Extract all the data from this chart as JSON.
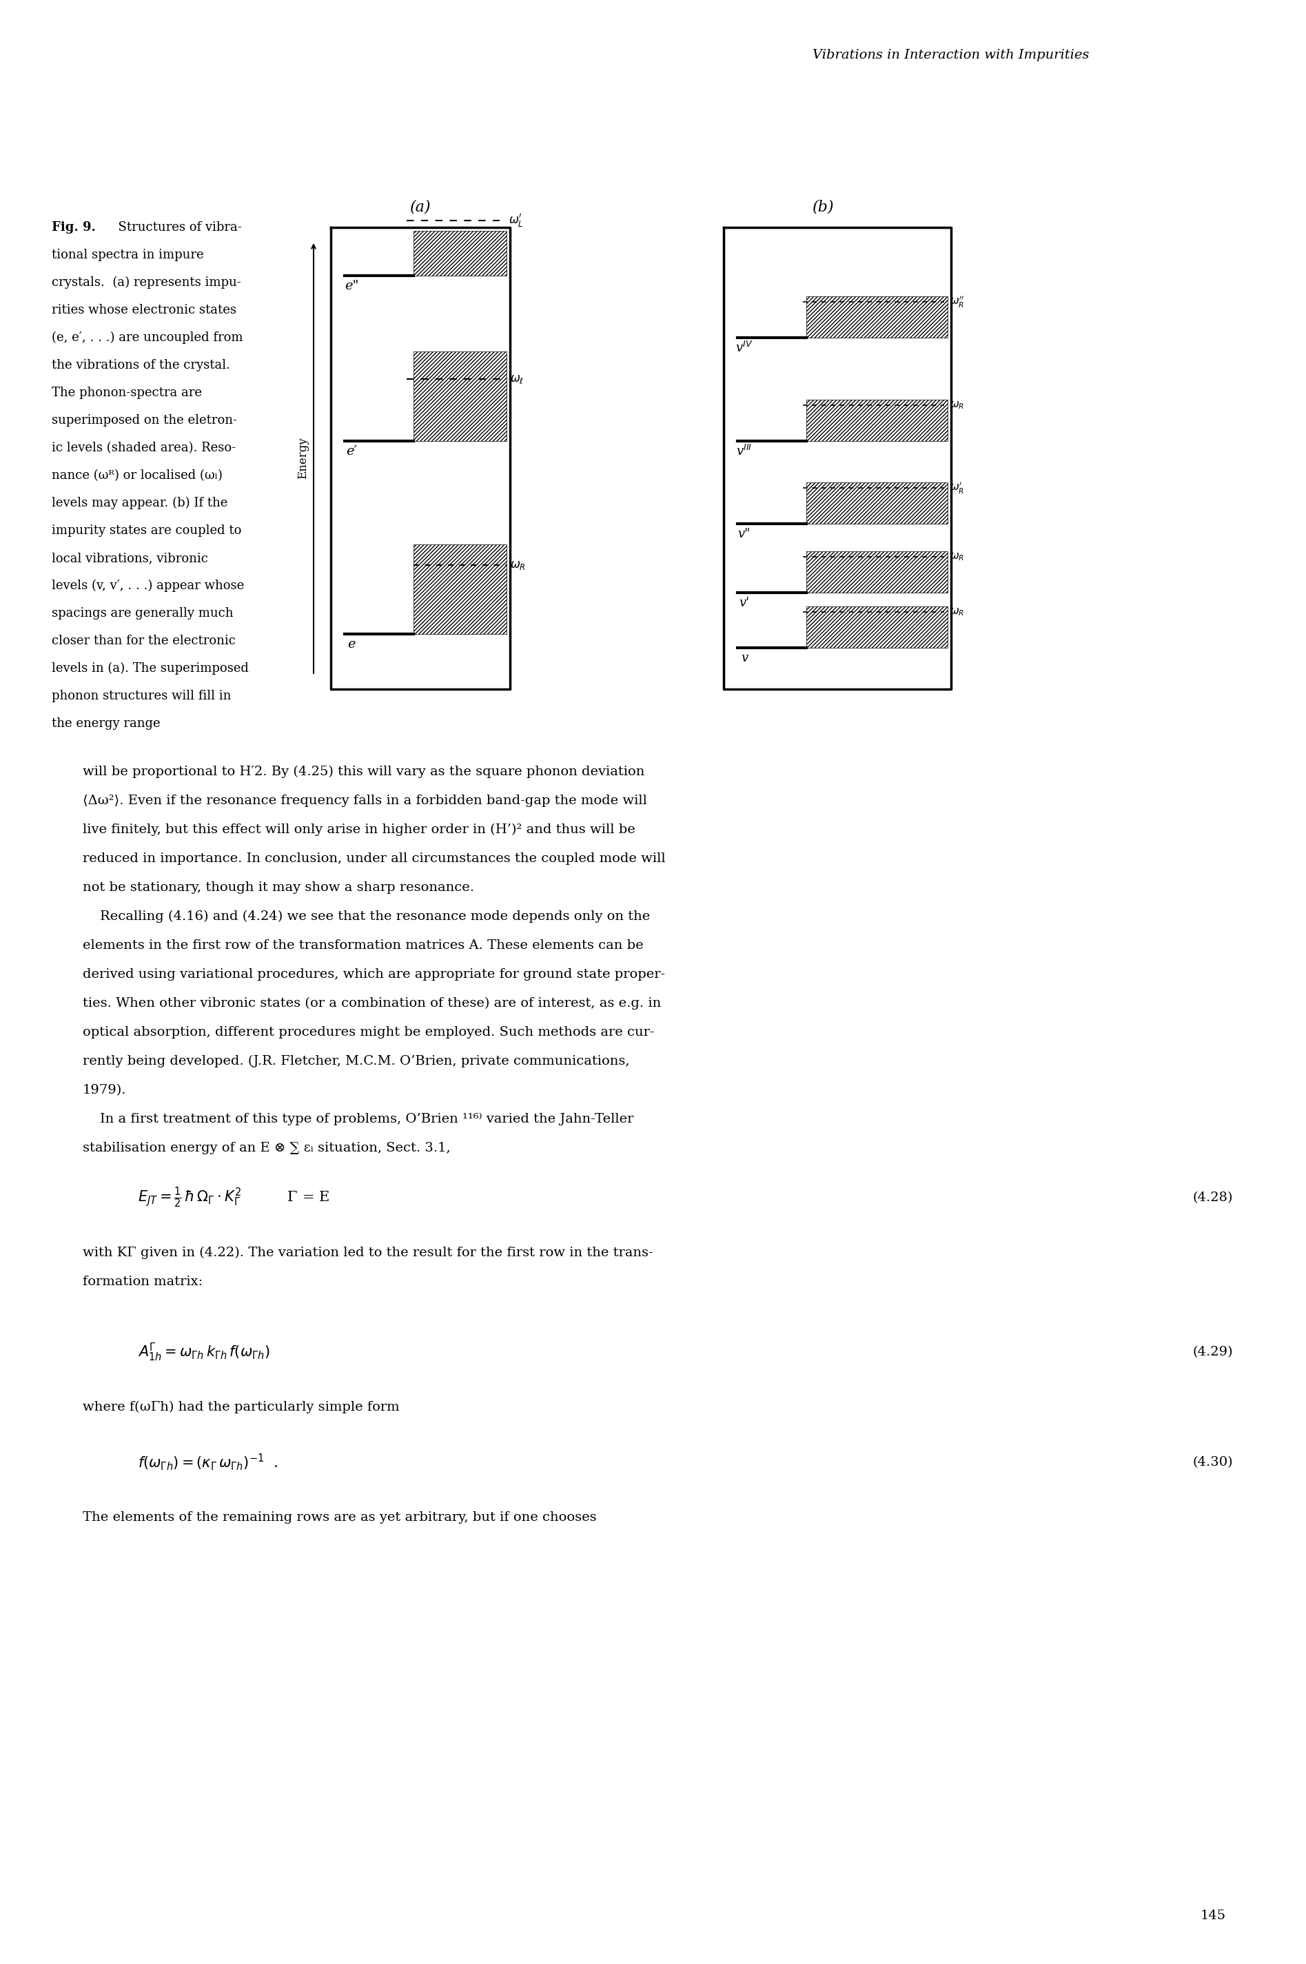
{
  "page_title": "Vibrations in Interaction with Impurities",
  "page_number": "145",
  "fig_caption": "Fig. 9.  Structures of vibra-\ntional spectra in impure\ncrystals.  (a) represents impu-\nrities whose electronic states\n(e, e’, . . .) are uncoupled from\nthe vibrations of the crystal.\nThe phonon-spectra are\nsuperimposed on the eletron-\nic levels (shaded area). Reso-\nnance (ωR) or localised (ωl)\nlevels may appear. (b) If the\nimpurity states are coupled to\nlocal vibrations, vibronic\nlevels (v, v’, . . .) appear whose\nspacings are generally much\ncloser than for the electronic\nlevels in (a). The superimposed\nphonon structures will fill in\nthe energy range",
  "body_text": [
    "will be proportional to H′2. By (4.25) this will vary as the square phonon deviation",
    "⟨Δω²⟩. Even if the resonance frequency falls in a forbidden band-gap the mode will",
    "live finitely, but this effect will only arise in higher order in (H’)² and thus will be",
    "reduced in importance. In conclusion, under all circumstances the coupled mode will",
    "not be stationary, though it may show a sharp resonance.",
    "Recalling (4.16) and (4.24) we see that the resonance mode depends only on the",
    "elements in the first row of the transformation matrices A. These elements can be",
    "derived using variational procedures, which are appropriate for ground state proper-",
    "ties. When other vibronic states (or a combination of these) are of interest, as e.g. in",
    "optical absorption, different procedures might be employed. Such methods are cur-",
    "rently being developed. (J.R. Fletcher, M.C.M. O’Brien, private communications,",
    "1979).",
    "In a first treatment of this type of problems, O’Brien 116) varied the Jahn-Teller",
    "stabilisation energy of an E ⊗ ∑ εi situation, Sect. 3.1,",
    "i",
    "EJT = ½ ħ ΩΓ· KΓ²          Γ = E",
    "(4.28)",
    "with KΓ given in (4.22). The variation led to the result for the first row in the trans-",
    "formation matrix:",
    "AΓ₁h = ωΓh kΓh f(ωΓh)",
    "(4.29)",
    "where f(ωΓh) had the particularly simple form",
    "f(ωΓh) = (κΓ ωΓh)⁻¹  .",
    "(4.30)",
    "The elements of the remaining rows are as yet arbitrary, but if one chooses"
  ],
  "background_color": "#ffffff",
  "text_color": "#000000",
  "hatch_color": "#000000"
}
